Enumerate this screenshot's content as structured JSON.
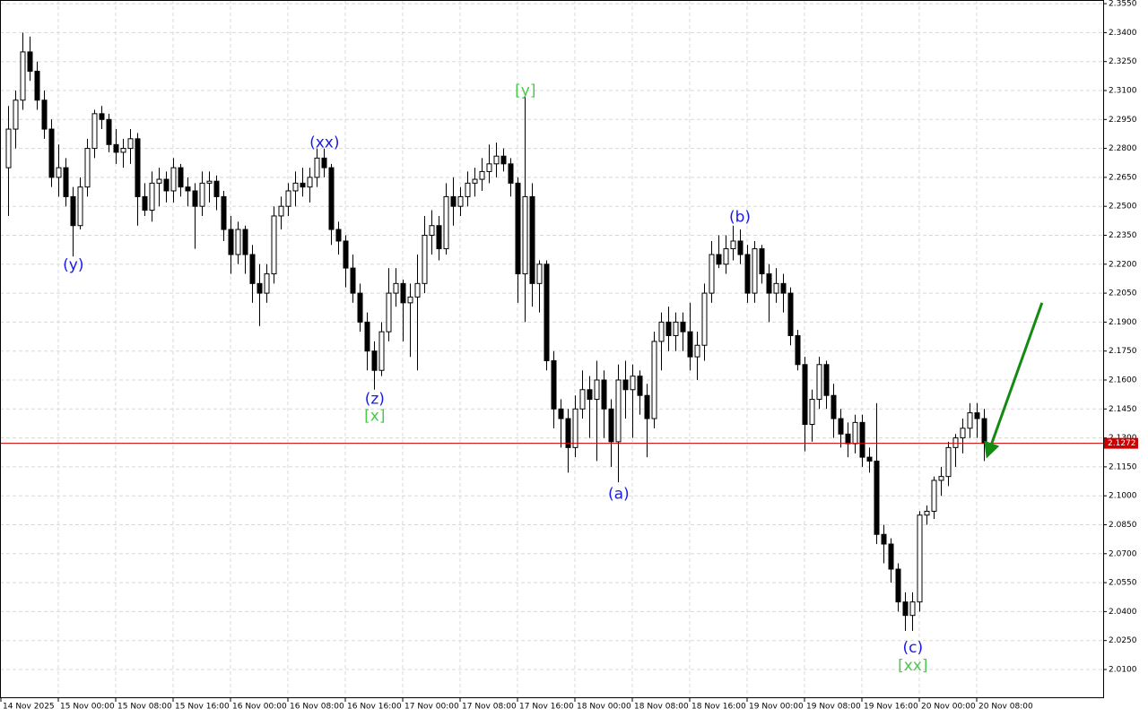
{
  "chart_data": {
    "type": "candlestick",
    "up_color": "#ffffff",
    "down_color": "#000000",
    "grid": true,
    "xlim": [
      -1.125,
      152.625
    ],
    "ylim": [
      1.9956,
      2.3569
    ],
    "xticks": [
      {
        "value": -1,
        "label": "14 Nov 2025"
      },
      {
        "value": 7,
        "label": "15 Nov 00:00"
      },
      {
        "value": 15,
        "label": "15 Nov 08:00"
      },
      {
        "value": 23,
        "label": "15 Nov 16:00"
      },
      {
        "value": 31,
        "label": "16 Nov 00:00"
      },
      {
        "value": 39,
        "label": "16 Nov 08:00"
      },
      {
        "value": 47,
        "label": "16 Nov 16:00"
      },
      {
        "value": 55,
        "label": "17 Nov 00:00"
      },
      {
        "value": 63,
        "label": "17 Nov 08:00"
      },
      {
        "value": 71,
        "label": "17 Nov 16:00"
      },
      {
        "value": 79,
        "label": "18 Nov 00:00"
      },
      {
        "value": 87,
        "label": "18 Nov 08:00"
      },
      {
        "value": 95,
        "label": "18 Nov 16:00"
      },
      {
        "value": 103,
        "label": "19 Nov 00:00"
      },
      {
        "value": 111,
        "label": "19 Nov 08:00"
      },
      {
        "value": 119,
        "label": "19 Nov 16:00"
      },
      {
        "value": 127,
        "label": "20 Nov 00:00"
      },
      {
        "value": 135,
        "label": "20 Nov 08:00"
      }
    ],
    "yticks": [
      {
        "value": 2.01,
        "label": "2.0100"
      },
      {
        "value": 2.025,
        "label": "2.0250"
      },
      {
        "value": 2.04,
        "label": "2.0400"
      },
      {
        "value": 2.055,
        "label": "2.0550"
      },
      {
        "value": 2.07,
        "label": "2.0700"
      },
      {
        "value": 2.085,
        "label": "2.0850"
      },
      {
        "value": 2.1,
        "label": "2.1000"
      },
      {
        "value": 2.115,
        "label": "2.1150"
      },
      {
        "value": 2.13,
        "label": "2.1300"
      },
      {
        "value": 2.145,
        "label": "2.1450"
      },
      {
        "value": 2.16,
        "label": "2.1600"
      },
      {
        "value": 2.175,
        "label": "2.1750"
      },
      {
        "value": 2.19,
        "label": "2.1900"
      },
      {
        "value": 2.205,
        "label": "2.2050"
      },
      {
        "value": 2.22,
        "label": "2.2200"
      },
      {
        "value": 2.235,
        "label": "2.2350"
      },
      {
        "value": 2.25,
        "label": "2.2500"
      },
      {
        "value": 2.265,
        "label": "2.2650"
      },
      {
        "value": 2.28,
        "label": "2.2800"
      },
      {
        "value": 2.295,
        "label": "2.2950"
      },
      {
        "value": 2.31,
        "label": "2.3100"
      },
      {
        "value": 2.325,
        "label": "2.3250"
      },
      {
        "value": 2.34,
        "label": "2.3400"
      },
      {
        "value": 2.355,
        "label": "2.3550"
      }
    ],
    "price_line": {
      "value": 2.1272,
      "color": "#cc0000"
    },
    "candles": [
      {
        "open": 2.27,
        "high": 2.302,
        "low": 2.245,
        "close": 2.29
      },
      {
        "open": 2.29,
        "high": 2.31,
        "low": 2.28,
        "close": 2.305
      },
      {
        "open": 2.305,
        "high": 2.34,
        "low": 2.3,
        "close": 2.33
      },
      {
        "open": 2.33,
        "high": 2.338,
        "low": 2.315,
        "close": 2.32
      },
      {
        "open": 2.32,
        "high": 2.325,
        "low": 2.3,
        "close": 2.305
      },
      {
        "open": 2.305,
        "high": 2.31,
        "low": 2.285,
        "close": 2.29
      },
      {
        "open": 2.29,
        "high": 2.295,
        "low": 2.26,
        "close": 2.265
      },
      {
        "open": 2.265,
        "high": 2.282,
        "low": 2.255,
        "close": 2.27
      },
      {
        "open": 2.27,
        "high": 2.275,
        "low": 2.25,
        "close": 2.255
      },
      {
        "open": 2.255,
        "high": 2.26,
        "low": 2.224,
        "close": 2.24
      },
      {
        "open": 2.24,
        "high": 2.265,
        "low": 2.238,
        "close": 2.26
      },
      {
        "open": 2.26,
        "high": 2.285,
        "low": 2.255,
        "close": 2.28
      },
      {
        "open": 2.28,
        "high": 2.3,
        "low": 2.275,
        "close": 2.298
      },
      {
        "open": 2.298,
        "high": 2.302,
        "low": 2.29,
        "close": 2.295
      },
      {
        "open": 2.295,
        "high": 2.298,
        "low": 2.278,
        "close": 2.282
      },
      {
        "open": 2.282,
        "high": 2.29,
        "low": 2.272,
        "close": 2.278
      },
      {
        "open": 2.278,
        "high": 2.285,
        "low": 2.27,
        "close": 2.28
      },
      {
        "open": 2.28,
        "high": 2.29,
        "low": 2.272,
        "close": 2.285
      },
      {
        "open": 2.285,
        "high": 2.288,
        "low": 2.24,
        "close": 2.255
      },
      {
        "open": 2.255,
        "high": 2.262,
        "low": 2.245,
        "close": 2.248
      },
      {
        "open": 2.248,
        "high": 2.268,
        "low": 2.242,
        "close": 2.262
      },
      {
        "open": 2.262,
        "high": 2.27,
        "low": 2.25,
        "close": 2.264
      },
      {
        "open": 2.264,
        "high": 2.268,
        "low": 2.252,
        "close": 2.258
      },
      {
        "open": 2.258,
        "high": 2.275,
        "low": 2.252,
        "close": 2.27
      },
      {
        "open": 2.27,
        "high": 2.272,
        "low": 2.255,
        "close": 2.26
      },
      {
        "open": 2.26,
        "high": 2.265,
        "low": 2.25,
        "close": 2.258
      },
      {
        "open": 2.258,
        "high": 2.262,
        "low": 2.228,
        "close": 2.25
      },
      {
        "open": 2.25,
        "high": 2.268,
        "low": 2.245,
        "close": 2.262
      },
      {
        "open": 2.262,
        "high": 2.268,
        "low": 2.252,
        "close": 2.263
      },
      {
        "open": 2.263,
        "high": 2.266,
        "low": 2.248,
        "close": 2.255
      },
      {
        "open": 2.255,
        "high": 2.258,
        "low": 2.232,
        "close": 2.238
      },
      {
        "open": 2.238,
        "high": 2.245,
        "low": 2.215,
        "close": 2.225
      },
      {
        "open": 2.225,
        "high": 2.242,
        "low": 2.22,
        "close": 2.238
      },
      {
        "open": 2.238,
        "high": 2.24,
        "low": 2.215,
        "close": 2.225
      },
      {
        "open": 2.225,
        "high": 2.23,
        "low": 2.2,
        "close": 2.21
      },
      {
        "open": 2.21,
        "high": 2.22,
        "low": 2.188,
        "close": 2.205
      },
      {
        "open": 2.205,
        "high": 2.22,
        "low": 2.2,
        "close": 2.215
      },
      {
        "open": 2.215,
        "high": 2.25,
        "low": 2.21,
        "close": 2.245
      },
      {
        "open": 2.245,
        "high": 2.255,
        "low": 2.238,
        "close": 2.25
      },
      {
        "open": 2.25,
        "high": 2.262,
        "low": 2.245,
        "close": 2.258
      },
      {
        "open": 2.258,
        "high": 2.268,
        "low": 2.25,
        "close": 2.262
      },
      {
        "open": 2.262,
        "high": 2.27,
        "low": 2.255,
        "close": 2.26
      },
      {
        "open": 2.26,
        "high": 2.27,
        "low": 2.252,
        "close": 2.265
      },
      {
        "open": 2.265,
        "high": 2.28,
        "low": 2.26,
        "close": 2.275
      },
      {
        "open": 2.275,
        "high": 2.28,
        "low": 2.265,
        "close": 2.27
      },
      {
        "open": 2.27,
        "high": 2.272,
        "low": 2.23,
        "close": 2.238
      },
      {
        "open": 2.238,
        "high": 2.242,
        "low": 2.225,
        "close": 2.232
      },
      {
        "open": 2.232,
        "high": 2.235,
        "low": 2.208,
        "close": 2.218
      },
      {
        "open": 2.218,
        "high": 2.225,
        "low": 2.2,
        "close": 2.205
      },
      {
        "open": 2.205,
        "high": 2.21,
        "low": 2.185,
        "close": 2.19
      },
      {
        "open": 2.19,
        "high": 2.195,
        "low": 2.165,
        "close": 2.175
      },
      {
        "open": 2.175,
        "high": 2.18,
        "low": 2.155,
        "close": 2.165
      },
      {
        "open": 2.165,
        "high": 2.19,
        "low": 2.162,
        "close": 2.185
      },
      {
        "open": 2.185,
        "high": 2.218,
        "low": 2.18,
        "close": 2.205
      },
      {
        "open": 2.205,
        "high": 2.218,
        "low": 2.198,
        "close": 2.21
      },
      {
        "open": 2.21,
        "high": 2.212,
        "low": 2.18,
        "close": 2.2
      },
      {
        "open": 2.2,
        "high": 2.21,
        "low": 2.172,
        "close": 2.203
      },
      {
        "open": 2.203,
        "high": 2.225,
        "low": 2.165,
        "close": 2.21
      },
      {
        "open": 2.21,
        "high": 2.245,
        "low": 2.205,
        "close": 2.235
      },
      {
        "open": 2.235,
        "high": 2.248,
        "low": 2.225,
        "close": 2.24
      },
      {
        "open": 2.24,
        "high": 2.245,
        "low": 2.222,
        "close": 2.228
      },
      {
        "open": 2.228,
        "high": 2.262,
        "low": 2.225,
        "close": 2.255
      },
      {
        "open": 2.255,
        "high": 2.265,
        "low": 2.24,
        "close": 2.25
      },
      {
        "open": 2.25,
        "high": 2.26,
        "low": 2.245,
        "close": 2.255
      },
      {
        "open": 2.255,
        "high": 2.268,
        "low": 2.25,
        "close": 2.262
      },
      {
        "open": 2.262,
        "high": 2.27,
        "low": 2.255,
        "close": 2.264
      },
      {
        "open": 2.264,
        "high": 2.275,
        "low": 2.258,
        "close": 2.268
      },
      {
        "open": 2.268,
        "high": 2.282,
        "low": 2.262,
        "close": 2.272
      },
      {
        "open": 2.272,
        "high": 2.283,
        "low": 2.265,
        "close": 2.276
      },
      {
        "open": 2.276,
        "high": 2.28,
        "low": 2.268,
        "close": 2.272
      },
      {
        "open": 2.272,
        "high": 2.275,
        "low": 2.255,
        "close": 2.262
      },
      {
        "open": 2.262,
        "high": 2.265,
        "low": 2.2,
        "close": 2.215
      },
      {
        "open": 2.215,
        "high": 2.308,
        "low": 2.19,
        "close": 2.255
      },
      {
        "open": 2.255,
        "high": 2.262,
        "low": 2.198,
        "close": 2.21
      },
      {
        "open": 2.21,
        "high": 2.222,
        "low": 2.195,
        "close": 2.22
      },
      {
        "open": 2.22,
        "high": 2.222,
        "low": 2.165,
        "close": 2.17
      },
      {
        "open": 2.17,
        "high": 2.175,
        "low": 2.135,
        "close": 2.145
      },
      {
        "open": 2.145,
        "high": 2.15,
        "low": 2.125,
        "close": 2.14
      },
      {
        "open": 2.14,
        "high": 2.145,
        "low": 2.112,
        "close": 2.125
      },
      {
        "open": 2.125,
        "high": 2.152,
        "low": 2.12,
        "close": 2.145
      },
      {
        "open": 2.145,
        "high": 2.165,
        "low": 2.14,
        "close": 2.155
      },
      {
        "open": 2.155,
        "high": 2.162,
        "low": 2.13,
        "close": 2.15
      },
      {
        "open": 2.15,
        "high": 2.17,
        "low": 2.118,
        "close": 2.16
      },
      {
        "open": 2.16,
        "high": 2.165,
        "low": 2.13,
        "close": 2.145
      },
      {
        "open": 2.145,
        "high": 2.15,
        "low": 2.115,
        "close": 2.128
      },
      {
        "open": 2.128,
        "high": 2.168,
        "low": 2.107,
        "close": 2.16
      },
      {
        "open": 2.16,
        "high": 2.17,
        "low": 2.14,
        "close": 2.155
      },
      {
        "open": 2.155,
        "high": 2.168,
        "low": 2.13,
        "close": 2.162
      },
      {
        "open": 2.162,
        "high": 2.165,
        "low": 2.142,
        "close": 2.152
      },
      {
        "open": 2.152,
        "high": 2.158,
        "low": 2.12,
        "close": 2.14
      },
      {
        "open": 2.14,
        "high": 2.185,
        "low": 2.135,
        "close": 2.18
      },
      {
        "open": 2.18,
        "high": 2.195,
        "low": 2.165,
        "close": 2.19
      },
      {
        "open": 2.19,
        "high": 2.198,
        "low": 2.175,
        "close": 2.183
      },
      {
        "open": 2.183,
        "high": 2.195,
        "low": 2.175,
        "close": 2.19
      },
      {
        "open": 2.19,
        "high": 2.195,
        "low": 2.175,
        "close": 2.185
      },
      {
        "open": 2.185,
        "high": 2.2,
        "low": 2.165,
        "close": 2.172
      },
      {
        "open": 2.172,
        "high": 2.185,
        "low": 2.16,
        "close": 2.178
      },
      {
        "open": 2.178,
        "high": 2.21,
        "low": 2.17,
        "close": 2.205
      },
      {
        "open": 2.205,
        "high": 2.232,
        "low": 2.2,
        "close": 2.225
      },
      {
        "open": 2.225,
        "high": 2.235,
        "low": 2.218,
        "close": 2.22
      },
      {
        "open": 2.22,
        "high": 2.235,
        "low": 2.215,
        "close": 2.228
      },
      {
        "open": 2.228,
        "high": 2.24,
        "low": 2.222,
        "close": 2.232
      },
      {
        "open": 2.232,
        "high": 2.238,
        "low": 2.22,
        "close": 2.225
      },
      {
        "open": 2.225,
        "high": 2.23,
        "low": 2.2,
        "close": 2.205
      },
      {
        "open": 2.205,
        "high": 2.232,
        "low": 2.2,
        "close": 2.228
      },
      {
        "open": 2.228,
        "high": 2.23,
        "low": 2.21,
        "close": 2.215
      },
      {
        "open": 2.215,
        "high": 2.22,
        "low": 2.19,
        "close": 2.205
      },
      {
        "open": 2.205,
        "high": 2.218,
        "low": 2.2,
        "close": 2.21
      },
      {
        "open": 2.21,
        "high": 2.215,
        "low": 2.195,
        "close": 2.205
      },
      {
        "open": 2.205,
        "high": 2.208,
        "low": 2.178,
        "close": 2.183
      },
      {
        "open": 2.183,
        "high": 2.186,
        "low": 2.165,
        "close": 2.168
      },
      {
        "open": 2.168,
        "high": 2.172,
        "low": 2.123,
        "close": 2.137
      },
      {
        "open": 2.137,
        "high": 2.155,
        "low": 2.128,
        "close": 2.15
      },
      {
        "open": 2.15,
        "high": 2.172,
        "low": 2.145,
        "close": 2.168
      },
      {
        "open": 2.168,
        "high": 2.17,
        "low": 2.145,
        "close": 2.152
      },
      {
        "open": 2.152,
        "high": 2.158,
        "low": 2.13,
        "close": 2.14
      },
      {
        "open": 2.14,
        "high": 2.145,
        "low": 2.125,
        "close": 2.132
      },
      {
        "open": 2.132,
        "high": 2.138,
        "low": 2.12,
        "close": 2.127
      },
      {
        "open": 2.127,
        "high": 2.142,
        "low": 2.122,
        "close": 2.138
      },
      {
        "open": 2.138,
        "high": 2.142,
        "low": 2.115,
        "close": 2.12
      },
      {
        "open": 2.12,
        "high": 2.125,
        "low": 2.112,
        "close": 2.118
      },
      {
        "open": 2.118,
        "high": 2.148,
        "low": 2.075,
        "close": 2.08
      },
      {
        "open": 2.08,
        "high": 2.085,
        "low": 2.065,
        "close": 2.075
      },
      {
        "open": 2.075,
        "high": 2.078,
        "low": 2.055,
        "close": 2.062
      },
      {
        "open": 2.062,
        "high": 2.065,
        "low": 2.04,
        "close": 2.045
      },
      {
        "open": 2.045,
        "high": 2.05,
        "low": 2.03,
        "close": 2.038
      },
      {
        "open": 2.038,
        "high": 2.05,
        "low": 2.03,
        "close": 2.045
      },
      {
        "open": 2.045,
        "high": 2.092,
        "low": 2.04,
        "close": 2.09
      },
      {
        "open": 2.09,
        "high": 2.095,
        "low": 2.085,
        "close": 2.092
      },
      {
        "open": 2.092,
        "high": 2.11,
        "low": 2.088,
        "close": 2.108
      },
      {
        "open": 2.108,
        "high": 2.115,
        "low": 2.1,
        "close": 2.11
      },
      {
        "open": 2.11,
        "high": 2.128,
        "low": 2.105,
        "close": 2.125
      },
      {
        "open": 2.125,
        "high": 2.132,
        "low": 2.115,
        "close": 2.13
      },
      {
        "open": 2.13,
        "high": 2.14,
        "low": 2.122,
        "close": 2.135
      },
      {
        "open": 2.135,
        "high": 2.148,
        "low": 2.13,
        "close": 2.143
      },
      {
        "open": 2.143,
        "high": 2.148,
        "low": 2.13,
        "close": 2.14
      },
      {
        "open": 2.14,
        "high": 2.145,
        "low": 2.118,
        "close": 2.1272
      }
    ],
    "annotations": [
      {
        "text": "(y)",
        "x": 9.1,
        "y": 2.2195,
        "color": "#1a1ae6"
      },
      {
        "text": "(xx)",
        "x": 44.1,
        "y": 2.2828,
        "color": "#1a1ae6"
      },
      {
        "text": "[y]",
        "x": 72.1,
        "y": 2.3098,
        "color": "#4cc84c"
      },
      {
        "text": "(z)",
        "x": 51.1,
        "y": 2.1501,
        "color": "#1a1ae6"
      },
      {
        "text": "[x]",
        "x": 51.1,
        "y": 2.1413,
        "color": "#4cc84c"
      },
      {
        "text": "(a)",
        "x": 85.1,
        "y": 2.1008,
        "color": "#1a1ae6"
      },
      {
        "text": "(b)",
        "x": 102.0,
        "y": 2.2442,
        "color": "#1a1ae6"
      },
      {
        "text": "(c)",
        "x": 126.1,
        "y": 2.0212,
        "color": "#1a1ae6"
      },
      {
        "text": "[xx]",
        "x": 126.1,
        "y": 2.0119,
        "color": "#4cc84c"
      }
    ],
    "arrows": [
      {
        "x": [
          137.1,
          144.1
        ],
        "y": [
          2.1272,
          2.2
        ],
        "color": "#138a13"
      }
    ]
  }
}
